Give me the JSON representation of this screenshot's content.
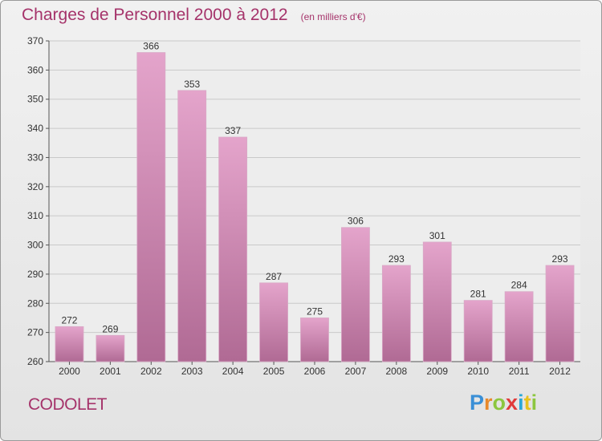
{
  "title": "Charges de Personnel 2000 à 2012",
  "subtitle": "(en milliers d'€)",
  "commune": "CODOLET",
  "logo": {
    "letters": [
      "P",
      "r",
      "o",
      "x",
      "i",
      "t",
      "i"
    ],
    "colors": [
      "#3a8fd6",
      "#e8892b",
      "#8cc63f",
      "#e03a3a",
      "#2aa8d8",
      "#e8c21e",
      "#8cc63f"
    ]
  },
  "colors": {
    "text_accent": "#a5336a",
    "bar_top": "#e4a4cb",
    "bar_bottom": "#b06a94"
  },
  "chart_data": {
    "type": "bar",
    "categories": [
      "2000",
      "2001",
      "2002",
      "2003",
      "2004",
      "2005",
      "2006",
      "2007",
      "2008",
      "2009",
      "2010",
      "2011",
      "2012"
    ],
    "values": [
      272,
      269,
      366,
      353,
      337,
      287,
      275,
      306,
      293,
      301,
      281,
      284,
      293
    ],
    "ylim": [
      260,
      370
    ],
    "yticks": [
      260,
      270,
      280,
      290,
      300,
      310,
      320,
      330,
      340,
      350,
      360,
      370
    ],
    "grid": true,
    "data_labels": true
  }
}
